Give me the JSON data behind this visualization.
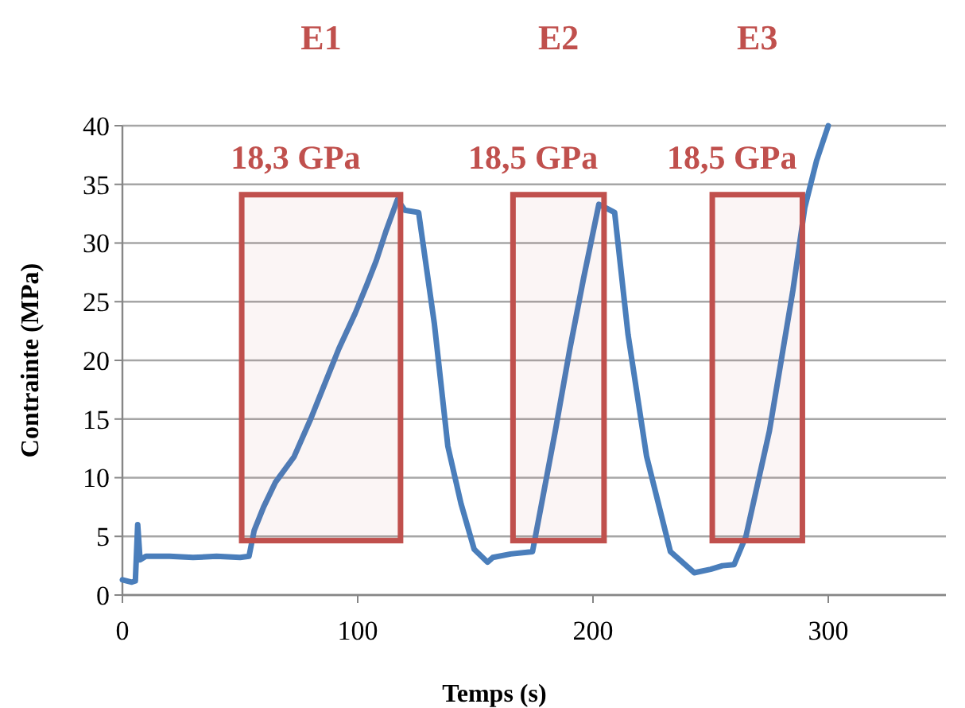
{
  "chart_data": {
    "type": "line",
    "xlabel": "Temps (s)",
    "ylabel": "Contrainte (MPa)",
    "xlim": [
      0,
      350
    ],
    "xticks": [
      0,
      100,
      200,
      300
    ],
    "ylim": [
      0,
      40
    ],
    "yticks": [
      0,
      5,
      10,
      15,
      20,
      25,
      30,
      35,
      40
    ],
    "grid": "y",
    "marker": "none",
    "line_style": "solid",
    "series": [
      {
        "color": "#4a7ebb",
        "x": [
          0,
          4,
          5.5,
          6.5,
          7.5,
          10,
          20,
          30,
          40,
          50,
          53.8,
          56,
          60,
          65,
          73,
          80,
          85.4,
          92,
          98.9,
          104,
          107.9,
          112,
          116.9,
          120,
          125.9,
          132.6,
          138.3,
          143.9,
          149.5,
          155.2,
          157.4,
          165,
          174.3,
          177.7,
          184,
          190.1,
          196,
          202.5,
          209.2,
          214.9,
          222.8,
          232.9,
          243,
          250,
          255,
          260,
          265,
          275,
          285,
          290,
          295,
          300
        ],
        "values": [
          1.3,
          1.1,
          1.2,
          6.0,
          3.0,
          3.3,
          3.3,
          3.2,
          3.3,
          3.2,
          3.3,
          5.5,
          7.5,
          9.6,
          11.8,
          15,
          17.7,
          21,
          24.0,
          26.5,
          28.5,
          31,
          33.7,
          32.8,
          32.6,
          23.1,
          12.7,
          7.8,
          3.9,
          2.8,
          3.2,
          3.5,
          3.7,
          7.3,
          14,
          20.9,
          27,
          33.3,
          32.6,
          22.2,
          11.8,
          3.7,
          1.9,
          2.2,
          2.5,
          2.6,
          5,
          14,
          26,
          33,
          37,
          40
        ]
      }
    ],
    "bands": [
      {
        "axis": "x",
        "from": 50.7,
        "to": 118.2,
        "label": "E1",
        "color": "#c0504d"
      },
      {
        "axis": "x",
        "from": 166,
        "to": 204.7,
        "label": "E2",
        "color": "#c0504d"
      },
      {
        "axis": "x",
        "from": 250.7,
        "to": 289,
        "label": "E3",
        "color": "#c0504d"
      }
    ],
    "annotations": [
      "18,3 GPa",
      "18,5 GPa",
      "18,5 GPa"
    ]
  }
}
